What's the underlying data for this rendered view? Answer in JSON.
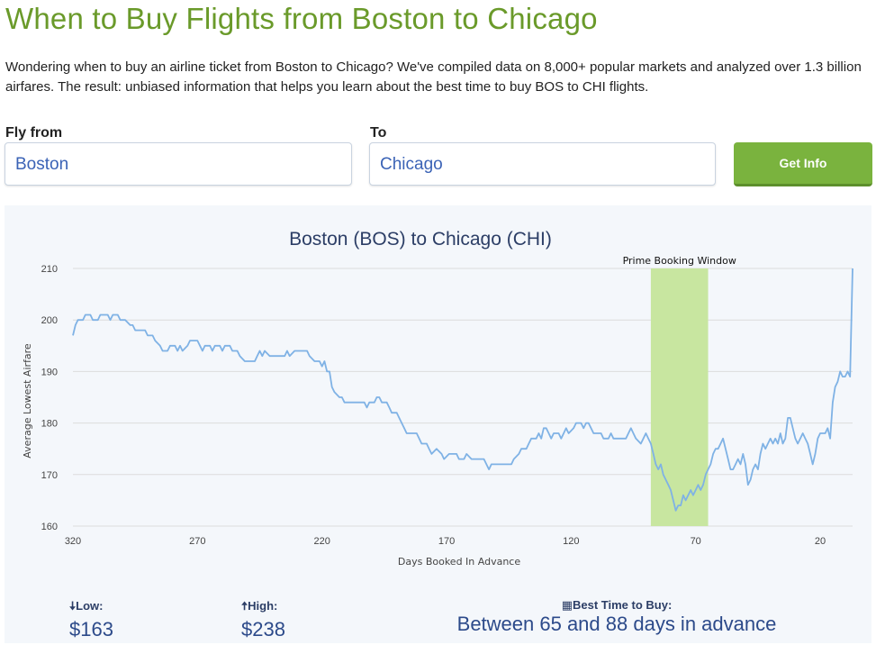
{
  "page": {
    "title": "When to Buy Flights from Boston to Chicago",
    "intro": "Wondering when to buy an airline ticket from Boston to Chicago? We've compiled data on 8,000+ popular markets and analyzed over 1.3 billion airfares. The result: unbiased information that helps you learn about the best time to buy BOS to CHI flights."
  },
  "form": {
    "from_label": "Fly from",
    "from_value": "Boston",
    "to_label": "To",
    "to_value": "Chicago",
    "button_label": "Get Info"
  },
  "chart_data": {
    "type": "line",
    "title": "Boston (BOS) to Chicago (CHI)",
    "xlabel": "Days Booked In Advance",
    "ylabel": "Average Lowest Airfare",
    "xlim": [
      320,
      7
    ],
    "ylim": [
      160,
      210
    ],
    "x_ticks": [
      320,
      270,
      220,
      170,
      120,
      70,
      20
    ],
    "y_ticks": [
      160,
      170,
      180,
      190,
      200,
      210
    ],
    "grid": "horizontal",
    "annotation": {
      "label": "Prime Booking Window",
      "x_start": 88,
      "x_end": 65
    },
    "line_color": "#7fb2e5",
    "band_color": "#c8e6a0",
    "series": [
      {
        "points": [
          [
            320,
            197
          ],
          [
            319,
            199
          ],
          [
            318,
            200
          ],
          [
            316,
            200
          ],
          [
            315,
            201
          ],
          [
            313,
            201
          ],
          [
            312,
            200
          ],
          [
            310,
            200
          ],
          [
            309,
            201
          ],
          [
            306,
            201
          ],
          [
            305,
            200
          ],
          [
            304,
            201
          ],
          [
            302,
            201
          ],
          [
            301,
            200
          ],
          [
            299,
            200
          ],
          [
            297,
            199
          ],
          [
            296,
            199
          ],
          [
            295,
            198
          ],
          [
            291,
            198
          ],
          [
            290,
            197
          ],
          [
            288,
            197
          ],
          [
            287,
            196
          ],
          [
            285,
            195
          ],
          [
            284,
            194
          ],
          [
            282,
            194
          ],
          [
            281,
            195
          ],
          [
            279,
            195
          ],
          [
            278,
            194
          ],
          [
            277,
            195
          ],
          [
            276,
            194
          ],
          [
            274,
            195
          ],
          [
            273,
            196
          ],
          [
            270,
            196
          ],
          [
            269,
            195
          ],
          [
            268,
            194
          ],
          [
            267,
            195
          ],
          [
            265,
            195
          ],
          [
            264,
            194
          ],
          [
            263,
            195
          ],
          [
            261,
            195
          ],
          [
            260,
            194
          ],
          [
            259,
            195
          ],
          [
            257,
            195
          ],
          [
            256,
            194
          ],
          [
            254,
            194
          ],
          [
            253,
            193
          ],
          [
            251,
            192
          ],
          [
            247,
            192
          ],
          [
            246,
            193
          ],
          [
            245,
            194
          ],
          [
            244,
            193
          ],
          [
            243,
            194
          ],
          [
            241,
            193
          ],
          [
            235,
            193
          ],
          [
            234,
            194
          ],
          [
            233,
            193
          ],
          [
            231,
            194
          ],
          [
            226,
            194
          ],
          [
            225,
            193
          ],
          [
            223,
            192
          ],
          [
            221,
            192
          ],
          [
            220,
            191
          ],
          [
            219,
            192
          ],
          [
            218,
            190
          ],
          [
            217,
            190
          ],
          [
            216,
            187
          ],
          [
            215,
            186
          ],
          [
            213,
            185
          ],
          [
            212,
            185
          ],
          [
            211,
            184
          ],
          [
            203,
            184
          ],
          [
            202,
            183
          ],
          [
            201,
            184
          ],
          [
            199,
            184
          ],
          [
            198,
            185
          ],
          [
            197,
            185
          ],
          [
            196,
            184
          ],
          [
            194,
            184
          ],
          [
            193,
            183
          ],
          [
            192,
            182
          ],
          [
            190,
            182
          ],
          [
            189,
            181
          ],
          [
            188,
            180
          ],
          [
            187,
            179
          ],
          [
            186,
            178
          ],
          [
            182,
            178
          ],
          [
            181,
            177
          ],
          [
            180,
            176
          ],
          [
            178,
            176
          ],
          [
            177,
            175
          ],
          [
            176,
            174
          ],
          [
            174,
            175
          ],
          [
            172,
            174
          ],
          [
            171,
            173
          ],
          [
            169,
            174
          ],
          [
            166,
            174
          ],
          [
            165,
            173
          ],
          [
            163,
            173
          ],
          [
            162,
            174
          ],
          [
            160,
            173
          ],
          [
            155,
            173
          ],
          [
            154,
            172
          ],
          [
            153,
            171
          ],
          [
            152,
            172
          ],
          [
            144,
            172
          ],
          [
            143,
            173
          ],
          [
            141,
            174
          ],
          [
            140,
            175
          ],
          [
            138,
            175
          ],
          [
            137,
            176
          ],
          [
            136,
            177
          ],
          [
            134,
            177
          ],
          [
            133,
            178
          ],
          [
            132,
            177
          ],
          [
            131,
            179
          ],
          [
            130,
            179
          ],
          [
            129,
            178
          ],
          [
            128,
            177
          ],
          [
            127,
            178
          ],
          [
            125,
            178
          ],
          [
            124,
            177
          ],
          [
            123,
            178
          ],
          [
            122,
            179
          ],
          [
            121,
            178
          ],
          [
            119,
            179
          ],
          [
            118,
            180
          ],
          [
            116,
            180
          ],
          [
            115,
            179
          ],
          [
            114,
            180
          ],
          [
            113,
            180
          ],
          [
            112,
            179
          ],
          [
            111,
            178
          ],
          [
            108,
            178
          ],
          [
            107,
            177
          ],
          [
            105,
            177
          ],
          [
            104,
            178
          ],
          [
            103,
            177
          ],
          [
            98,
            177
          ],
          [
            97,
            178
          ],
          [
            96,
            179
          ],
          [
            95,
            178
          ],
          [
            94,
            177
          ],
          [
            92,
            176
          ],
          [
            91,
            177
          ],
          [
            90,
            178
          ],
          [
            89,
            177
          ],
          [
            88,
            176
          ],
          [
            87,
            174
          ],
          [
            86,
            172
          ],
          [
            85,
            171
          ],
          [
            84,
            172
          ],
          [
            83,
            170
          ],
          [
            82,
            169
          ],
          [
            81,
            168
          ],
          [
            80,
            167
          ],
          [
            79,
            165
          ],
          [
            78,
            163
          ],
          [
            77,
            164
          ],
          [
            76,
            164
          ],
          [
            75,
            166
          ],
          [
            74,
            165
          ],
          [
            73,
            166
          ],
          [
            72,
            167
          ],
          [
            71,
            166
          ],
          [
            70,
            167
          ],
          [
            69,
            168
          ],
          [
            68,
            167
          ],
          [
            67,
            168
          ],
          [
            66,
            170
          ],
          [
            65,
            171
          ],
          [
            64,
            172
          ],
          [
            63,
            174
          ],
          [
            62,
            175
          ],
          [
            61,
            175
          ],
          [
            60,
            176
          ],
          [
            59,
            177
          ],
          [
            57,
            173
          ],
          [
            56,
            171
          ],
          [
            55,
            171
          ],
          [
            54,
            172
          ],
          [
            53,
            173
          ],
          [
            52,
            172
          ],
          [
            51,
            174
          ],
          [
            50,
            172
          ],
          [
            49,
            168
          ],
          [
            48,
            169
          ],
          [
            47,
            171
          ],
          [
            46,
            172
          ],
          [
            45,
            171
          ],
          [
            44,
            174
          ],
          [
            43,
            176
          ],
          [
            42,
            175
          ],
          [
            41,
            176
          ],
          [
            40,
            177
          ],
          [
            39,
            176
          ],
          [
            38,
            177
          ],
          [
            37,
            176
          ],
          [
            36,
            178
          ],
          [
            35,
            176
          ],
          [
            34,
            177
          ],
          [
            33,
            181
          ],
          [
            32,
            181
          ],
          [
            31,
            179
          ],
          [
            30,
            177
          ],
          [
            29,
            176
          ],
          [
            28,
            177
          ],
          [
            27,
            178
          ],
          [
            26,
            177
          ],
          [
            25,
            176
          ],
          [
            24,
            174
          ],
          [
            23,
            172
          ],
          [
            22,
            174
          ],
          [
            21,
            177
          ],
          [
            20,
            178
          ],
          [
            19,
            178
          ],
          [
            18,
            178
          ],
          [
            17,
            179
          ],
          [
            16,
            177
          ],
          [
            15,
            184
          ],
          [
            14,
            187
          ],
          [
            13,
            188
          ],
          [
            12,
            190
          ],
          [
            11,
            189
          ],
          [
            10,
            189
          ],
          [
            9,
            190
          ],
          [
            8,
            189
          ],
          [
            7,
            210
          ]
        ]
      }
    ]
  },
  "stats": {
    "low_label": "Low:",
    "low_value": "$163",
    "high_label": "High:",
    "high_value": "$238",
    "best_label": "Best Time to Buy:",
    "best_value": "Between 65 and 88 days in advance"
  }
}
